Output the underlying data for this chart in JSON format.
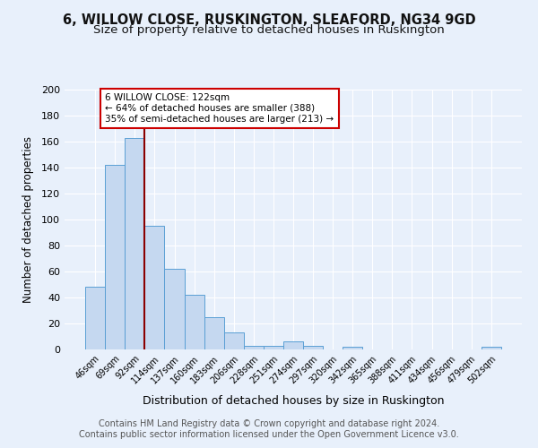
{
  "title": "6, WILLOW CLOSE, RUSKINGTON, SLEAFORD, NG34 9GD",
  "subtitle": "Size of property relative to detached houses in Ruskington",
  "xlabel": "Distribution of detached houses by size in Ruskington",
  "ylabel": "Number of detached properties",
  "bar_labels": [
    "46sqm",
    "69sqm",
    "92sqm",
    "114sqm",
    "137sqm",
    "160sqm",
    "183sqm",
    "206sqm",
    "228sqm",
    "251sqm",
    "274sqm",
    "297sqm",
    "320sqm",
    "342sqm",
    "365sqm",
    "388sqm",
    "411sqm",
    "434sqm",
    "456sqm",
    "479sqm",
    "502sqm"
  ],
  "bar_values": [
    48,
    142,
    163,
    95,
    62,
    42,
    25,
    13,
    3,
    3,
    6,
    3,
    0,
    2,
    0,
    0,
    0,
    0,
    0,
    0,
    2
  ],
  "bar_color": "#c5d8f0",
  "bar_edge_color": "#5a9fd4",
  "vline_color": "#8b0000",
  "annotation_text": "6 WILLOW CLOSE: 122sqm\n← 64% of detached houses are smaller (388)\n35% of semi-detached houses are larger (213) →",
  "annotation_box_color": "#ffffff",
  "annotation_box_edge_color": "#cc0000",
  "ylim": [
    0,
    200
  ],
  "yticks": [
    0,
    20,
    40,
    60,
    80,
    100,
    120,
    140,
    160,
    180,
    200
  ],
  "footer_text": "Contains HM Land Registry data © Crown copyright and database right 2024.\nContains public sector information licensed under the Open Government Licence v3.0.",
  "bg_color": "#e8f0fb",
  "plot_bg_color": "#e8f0fb",
  "title_fontsize": 10.5,
  "subtitle_fontsize": 9.5,
  "footer_fontsize": 7
}
